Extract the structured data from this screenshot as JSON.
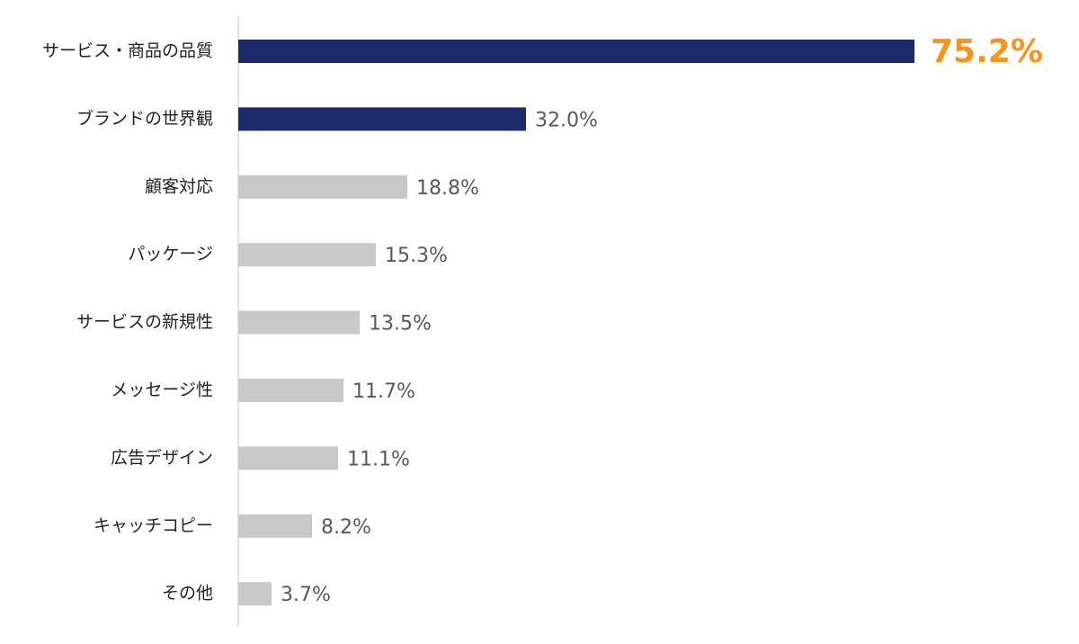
{
  "chart_data": {
    "type": "bar",
    "orientation": "horizontal",
    "categories": [
      "サービス・商品の品質",
      "ブランドの世界観",
      "顧客対応",
      "パッケージ",
      "サービスの新規性",
      "メッセージ性",
      "広告デザイン",
      "キャッチコピー",
      "その他"
    ],
    "values": [
      75.2,
      32.0,
      18.8,
      15.3,
      13.5,
      11.7,
      11.1,
      8.2,
      3.7
    ],
    "value_labels": [
      "75.2%",
      "32.0%",
      "18.8%",
      "15.3%",
      "13.5%",
      "11.7%",
      "11.1%",
      "8.2%",
      "3.7%"
    ],
    "colors": [
      "#1b2a6b",
      "#1b2a6b",
      "#c8c8c8",
      "#c8c8c8",
      "#c8c8c8",
      "#c8c8c8",
      "#c8c8c8",
      "#c8c8c8",
      "#c8c8c8"
    ],
    "value_label_colors": [
      "#f7941d",
      "#595959",
      "#595959",
      "#595959",
      "#595959",
      "#595959",
      "#595959",
      "#595959",
      "#595959"
    ]
  }
}
